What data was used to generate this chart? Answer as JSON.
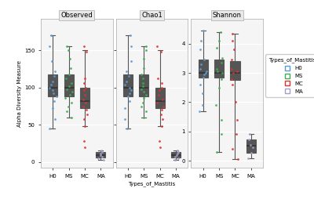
{
  "panels": [
    "Observed",
    "Chao1",
    "Shannon"
  ],
  "groups": [
    "H0",
    "MS",
    "MC",
    "MA"
  ],
  "group_colors": {
    "H0": "#5b9bd5",
    "MS": "#3dae4f",
    "MC": "#e03030",
    "MA": "#a09fc8"
  },
  "ylabel": "Alpha Diversity Measure",
  "xlabel": "Types_of_Mastitis",
  "legend_title": "Types_of_Mastitis",
  "panel_bg": "#f5f5f5",
  "observed": {
    "H0": {
      "q1": 88,
      "median": 100,
      "q3": 118,
      "whislo": 45,
      "whishi": 170
    },
    "MS": {
      "q1": 88,
      "median": 100,
      "q3": 118,
      "whislo": 60,
      "whishi": 155
    },
    "MC": {
      "q1": 72,
      "median": 82,
      "q3": 100,
      "whislo": 48,
      "whishi": 150
    },
    "MA": {
      "q1": 6,
      "median": 9,
      "q3": 13,
      "whislo": 3,
      "whishi": 16
    }
  },
  "chao1": {
    "H0": {
      "q1": 88,
      "median": 100,
      "q3": 118,
      "whislo": 45,
      "whishi": 170
    },
    "MS": {
      "q1": 88,
      "median": 100,
      "q3": 118,
      "whislo": 60,
      "whishi": 155
    },
    "MC": {
      "q1": 72,
      "median": 82,
      "q3": 100,
      "whislo": 48,
      "whishi": 150
    },
    "MA": {
      "q1": 6,
      "median": 9,
      "q3": 13,
      "whislo": 3,
      "whishi": 16
    }
  },
  "shannon": {
    "H0": {
      "q1": 2.85,
      "median": 3.0,
      "q3": 3.45,
      "whislo": 1.7,
      "whishi": 4.45
    },
    "MS": {
      "q1": 2.85,
      "median": 3.0,
      "q3": 3.45,
      "whislo": 0.3,
      "whishi": 4.4
    },
    "MC": {
      "q1": 2.75,
      "median": 3.0,
      "q3": 3.4,
      "whislo": 0.05,
      "whishi": 4.35
    },
    "MA": {
      "q1": 0.28,
      "median": 0.52,
      "q3": 0.72,
      "whislo": 0.08,
      "whishi": 0.92
    }
  },
  "scatter_observed_H0": [
    45,
    58,
    72,
    82,
    88,
    92,
    96,
    100,
    104,
    108,
    115,
    122,
    135,
    155,
    170
  ],
  "scatter_observed_MS": [
    60,
    68,
    74,
    80,
    86,
    90,
    94,
    98,
    102,
    106,
    112,
    118,
    126,
    138,
    150,
    155
  ],
  "scatter_observed_MC": [
    20,
    28,
    48,
    58,
    64,
    70,
    74,
    80,
    84,
    90,
    96,
    100,
    106,
    112,
    148,
    155
  ],
  "scatter_observed_MA": [
    3,
    5,
    7,
    9,
    11,
    13,
    16
  ],
  "scatter_shannon_H0": [
    1.7,
    1.9,
    2.3,
    2.6,
    2.85,
    2.95,
    3.0,
    3.05,
    3.15,
    3.3,
    3.45,
    3.8,
    4.1,
    4.45
  ],
  "scatter_shannon_MS": [
    0.3,
    0.9,
    1.4,
    1.9,
    2.5,
    2.8,
    3.0,
    3.05,
    3.15,
    3.35,
    3.5,
    3.85,
    4.1,
    4.4
  ],
  "scatter_shannon_MC": [
    0.05,
    0.4,
    0.9,
    1.4,
    2.0,
    2.6,
    2.8,
    3.0,
    3.05,
    3.15,
    3.45,
    3.8,
    4.1,
    4.35
  ],
  "scatter_shannon_MA": [
    0.08,
    0.28,
    0.45,
    0.55,
    0.72,
    0.92
  ],
  "ylim_obs": [
    -8,
    192
  ],
  "ylim_sha": [
    -0.25,
    4.85
  ],
  "yticks_obs": [
    0,
    50,
    100,
    150
  ],
  "yticks_sha": [
    0,
    1,
    2,
    3,
    4
  ],
  "fig_bg": "#ffffff",
  "box_edge_color": "#555555",
  "box_face_color": "#ffffff",
  "median_color": "#333333",
  "whisker_color": "#555555"
}
